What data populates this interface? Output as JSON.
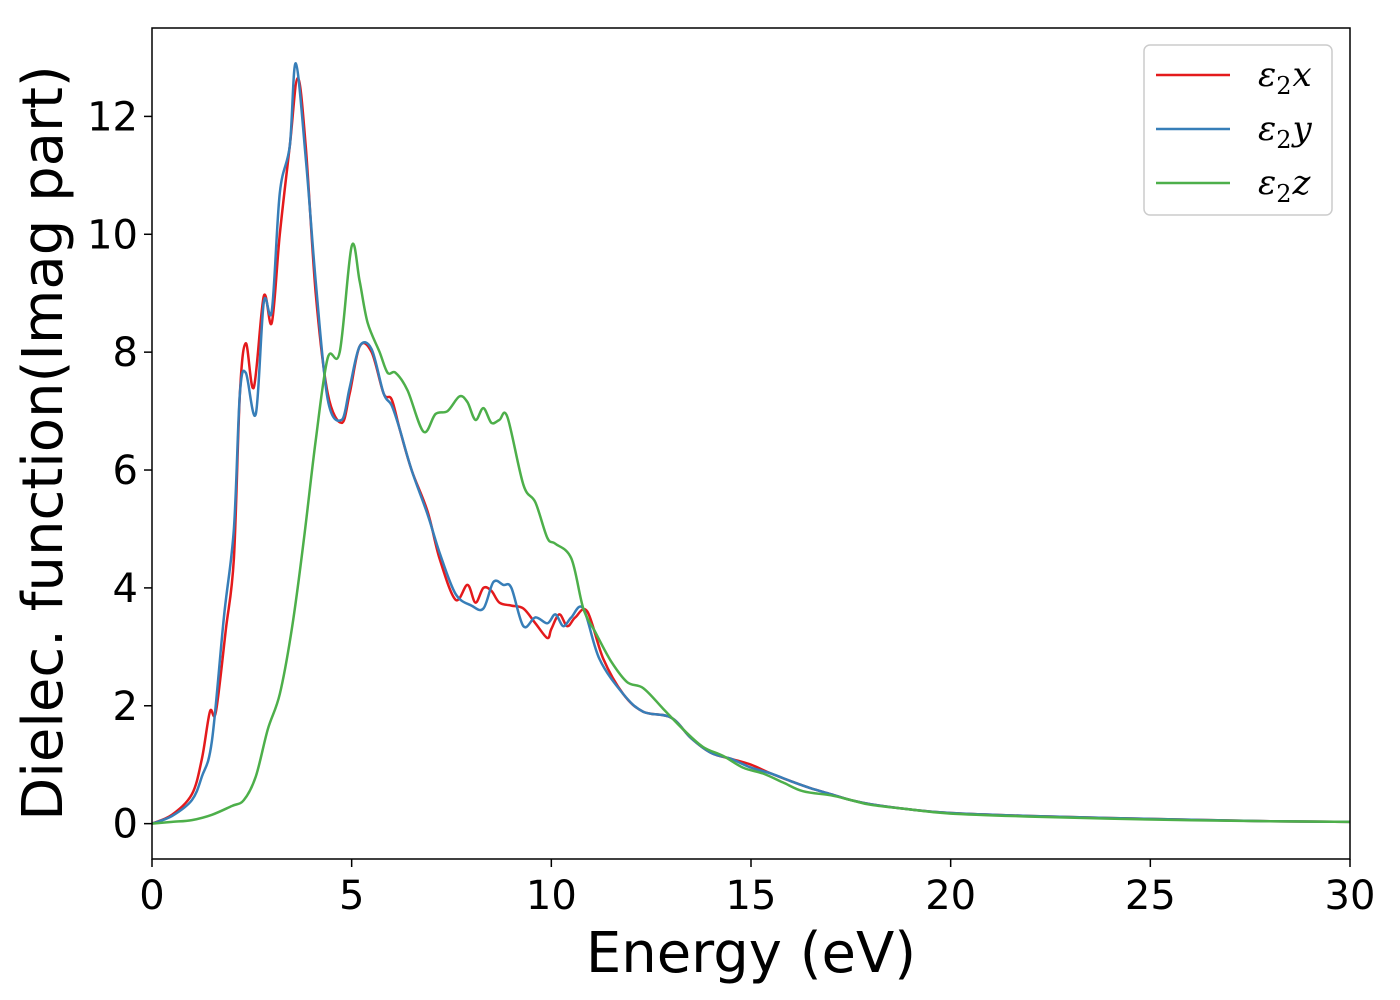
{
  "chart_data": {
    "type": "line",
    "title": "",
    "xlabel": "Energy (eV)",
    "ylabel": "Dielec. function(Imag part)",
    "xlim": [
      0,
      30
    ],
    "ylim": [
      -0.6,
      13.5
    ],
    "xticks": [
      0,
      5,
      10,
      15,
      20,
      25,
      30
    ],
    "yticks": [
      0,
      2,
      4,
      6,
      8,
      10,
      12
    ],
    "grid": false,
    "legend_position": "top-right",
    "series": [
      {
        "name": "ε2x",
        "legend": {
          "base": "ε",
          "sub": "2",
          "comp": "x"
        },
        "color": "#e41a1c",
        "x": [
          0,
          0.5,
          1.0,
          1.25,
          1.45,
          1.6,
          1.85,
          2.05,
          2.2,
          2.35,
          2.55,
          2.8,
          3.0,
          3.2,
          3.45,
          3.65,
          3.85,
          4.1,
          4.4,
          4.75,
          4.95,
          5.2,
          5.5,
          5.8,
          6.0,
          6.2,
          6.5,
          6.9,
          7.2,
          7.6,
          7.9,
          8.1,
          8.3,
          8.5,
          8.7,
          9.0,
          9.3,
          9.6,
          9.9,
          10.0,
          10.2,
          10.4,
          10.6,
          10.9,
          11.3,
          11.8,
          12.3,
          13.0,
          13.5,
          14.0,
          14.5,
          15.0,
          15.5,
          16.0,
          16.5,
          17.0,
          17.5,
          18.0,
          19.0,
          20.0,
          22.0,
          25.0,
          28.0,
          30.0
        ],
        "y": [
          0.0,
          0.15,
          0.5,
          1.1,
          1.9,
          1.9,
          3.3,
          4.5,
          7.3,
          8.15,
          7.4,
          8.95,
          8.5,
          10.0,
          11.5,
          12.65,
          11.5,
          9.0,
          7.3,
          6.8,
          7.3,
          8.1,
          8.0,
          7.3,
          7.2,
          6.7,
          6.0,
          5.3,
          4.5,
          3.8,
          4.05,
          3.75,
          4.0,
          3.95,
          3.75,
          3.7,
          3.65,
          3.4,
          3.15,
          3.3,
          3.55,
          3.35,
          3.5,
          3.6,
          2.8,
          2.2,
          1.9,
          1.8,
          1.45,
          1.2,
          1.1,
          1.0,
          0.85,
          0.72,
          0.6,
          0.5,
          0.4,
          0.33,
          0.24,
          0.18,
          0.13,
          0.08,
          0.04,
          0.03
        ]
      },
      {
        "name": "ε2y",
        "legend": {
          "base": "ε",
          "sub": "2",
          "comp": "y"
        },
        "color": "#377eb8",
        "x": [
          0,
          0.5,
          1.0,
          1.25,
          1.5,
          1.8,
          2.05,
          2.2,
          2.35,
          2.6,
          2.8,
          3.0,
          3.2,
          3.45,
          3.6,
          3.85,
          4.1,
          4.4,
          4.75,
          4.95,
          5.2,
          5.5,
          5.8,
          6.0,
          6.2,
          6.5,
          6.9,
          7.2,
          7.6,
          8.0,
          8.3,
          8.55,
          8.8,
          9.0,
          9.3,
          9.6,
          9.9,
          10.1,
          10.3,
          10.5,
          10.8,
          11.2,
          11.8,
          12.3,
          13.0,
          13.5,
          14.0,
          14.5,
          15.0,
          15.5,
          16.0,
          16.5,
          17.0,
          17.5,
          18.0,
          19.0,
          20.0,
          22.0,
          25.0,
          28.0,
          30.0
        ],
        "y": [
          0.0,
          0.13,
          0.4,
          0.8,
          1.4,
          3.5,
          5.0,
          7.3,
          7.65,
          6.95,
          8.85,
          8.7,
          10.7,
          11.5,
          12.9,
          11.3,
          9.2,
          7.2,
          6.85,
          7.4,
          8.1,
          8.05,
          7.3,
          7.1,
          6.7,
          6.0,
          5.25,
          4.6,
          3.9,
          3.7,
          3.65,
          4.1,
          4.05,
          4.0,
          3.35,
          3.5,
          3.4,
          3.55,
          3.35,
          3.5,
          3.65,
          2.8,
          2.2,
          1.9,
          1.8,
          1.45,
          1.2,
          1.1,
          0.95,
          0.85,
          0.72,
          0.6,
          0.5,
          0.4,
          0.33,
          0.24,
          0.18,
          0.13,
          0.08,
          0.04,
          0.03
        ]
      },
      {
        "name": "ε2z",
        "legend": {
          "base": "ε",
          "sub": "2",
          "comp": "z"
        },
        "color": "#4daf4a",
        "x": [
          0,
          0.5,
          1.0,
          1.5,
          2.0,
          2.3,
          2.6,
          2.9,
          3.2,
          3.5,
          3.8,
          4.1,
          4.4,
          4.7,
          5.0,
          5.2,
          5.4,
          5.7,
          5.9,
          6.1,
          6.4,
          6.8,
          7.1,
          7.4,
          7.7,
          7.9,
          8.1,
          8.3,
          8.5,
          8.7,
          8.9,
          9.3,
          9.6,
          9.9,
          10.1,
          10.5,
          10.8,
          11.1,
          11.5,
          11.9,
          12.3,
          12.8,
          13.3,
          13.8,
          14.3,
          14.8,
          15.3,
          15.8,
          16.3,
          17.0,
          17.5,
          18.0,
          19.0,
          20.0,
          22.0,
          25.0,
          28.0,
          30.0
        ],
        "y": [
          0.0,
          0.03,
          0.06,
          0.15,
          0.3,
          0.4,
          0.8,
          1.6,
          2.2,
          3.3,
          4.8,
          6.5,
          7.9,
          8.0,
          9.8,
          9.2,
          8.5,
          8.0,
          7.65,
          7.65,
          7.35,
          6.65,
          6.95,
          7.0,
          7.25,
          7.15,
          6.85,
          7.05,
          6.8,
          6.85,
          6.9,
          5.75,
          5.45,
          4.85,
          4.75,
          4.5,
          3.65,
          3.25,
          2.75,
          2.4,
          2.3,
          1.95,
          1.6,
          1.3,
          1.15,
          0.95,
          0.85,
          0.7,
          0.55,
          0.48,
          0.4,
          0.32,
          0.24,
          0.17,
          0.12,
          0.07,
          0.04,
          0.03
        ]
      }
    ]
  }
}
